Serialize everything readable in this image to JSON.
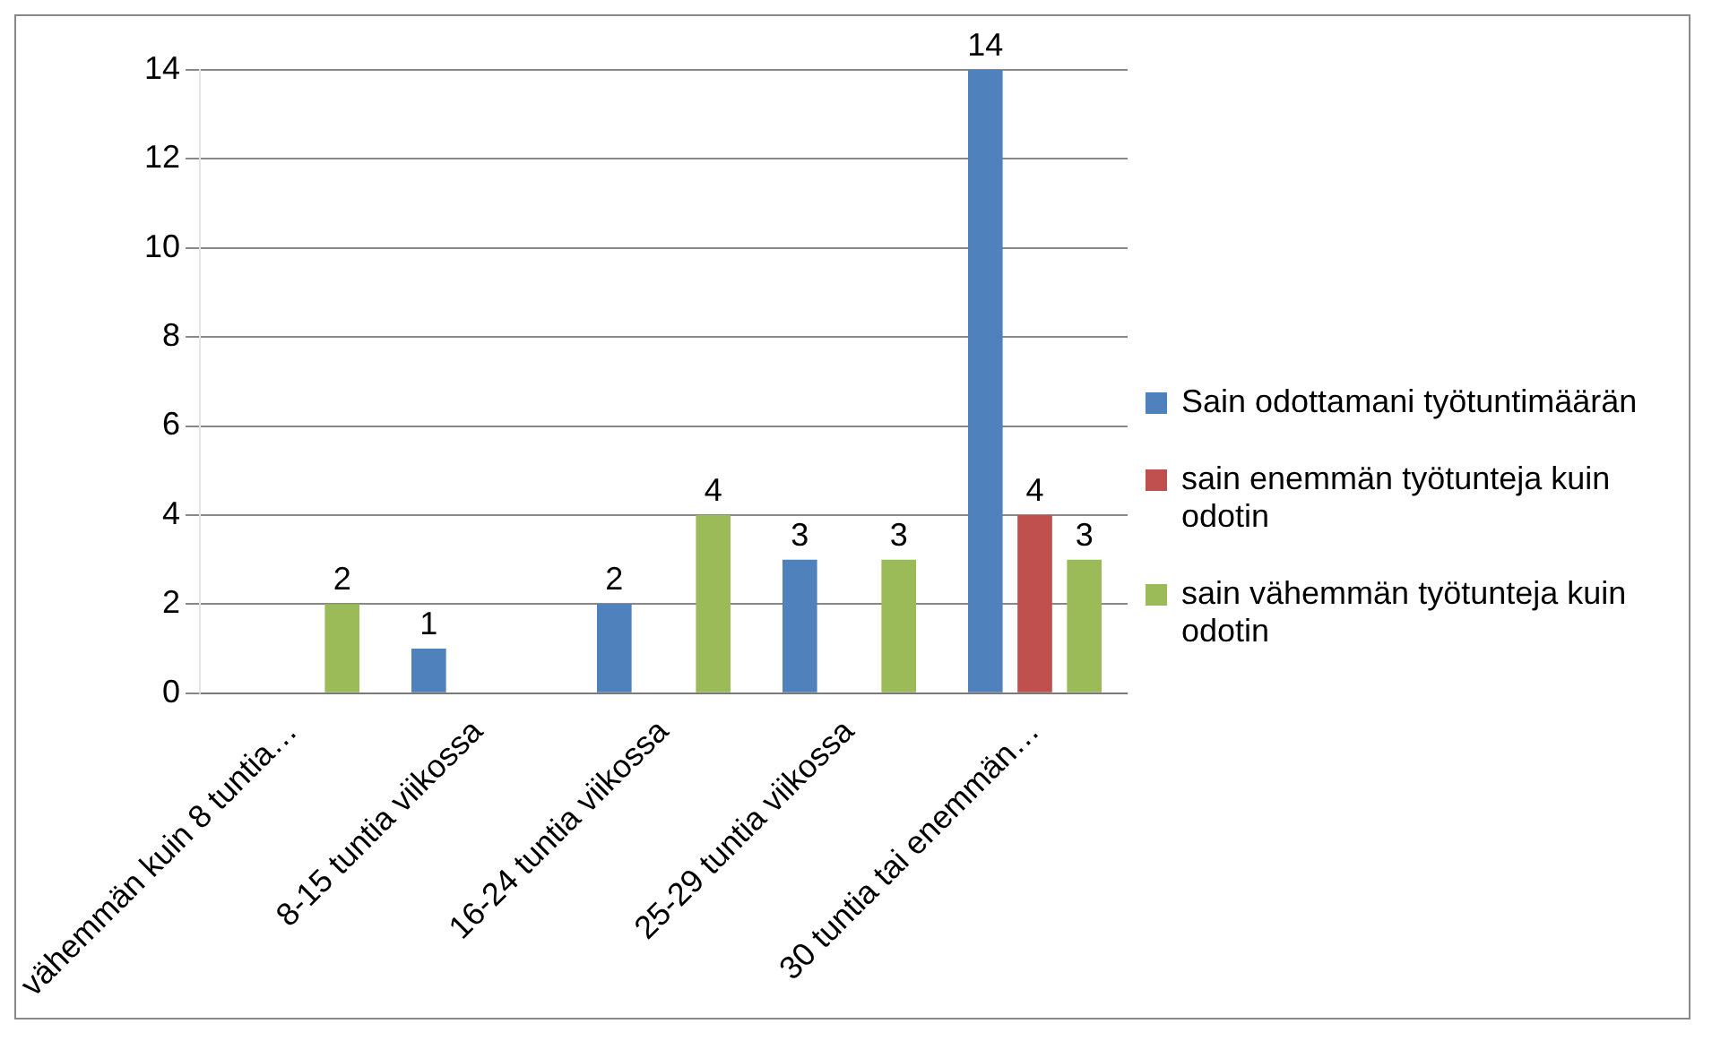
{
  "chart_data": {
    "type": "bar",
    "categories": [
      "vähemmän kuin 8 tuntia…",
      "8-15 tuntia viikossa",
      "16-24 tuntia viikossa",
      "25-29 tuntia viikossa",
      "30 tuntia tai enemmän…"
    ],
    "series": [
      {
        "name": "Sain odottamani työtuntimäärän",
        "color": "#4f81bd",
        "values": [
          null,
          1,
          2,
          3,
          14
        ]
      },
      {
        "name": "sain enemmän työtunteja kuin odotin",
        "color": "#c0504d",
        "values": [
          null,
          null,
          null,
          null,
          4
        ]
      },
      {
        "name": "sain vähemmän työtunteja kuin odotin",
        "color": "#9bbb59",
        "values": [
          2,
          null,
          4,
          3,
          3
        ]
      }
    ],
    "ylim": [
      0,
      14
    ],
    "yticks": [
      0,
      2,
      4,
      6,
      8,
      10,
      12,
      14
    ],
    "grid": "y",
    "legend": "right",
    "data_labels": true
  }
}
